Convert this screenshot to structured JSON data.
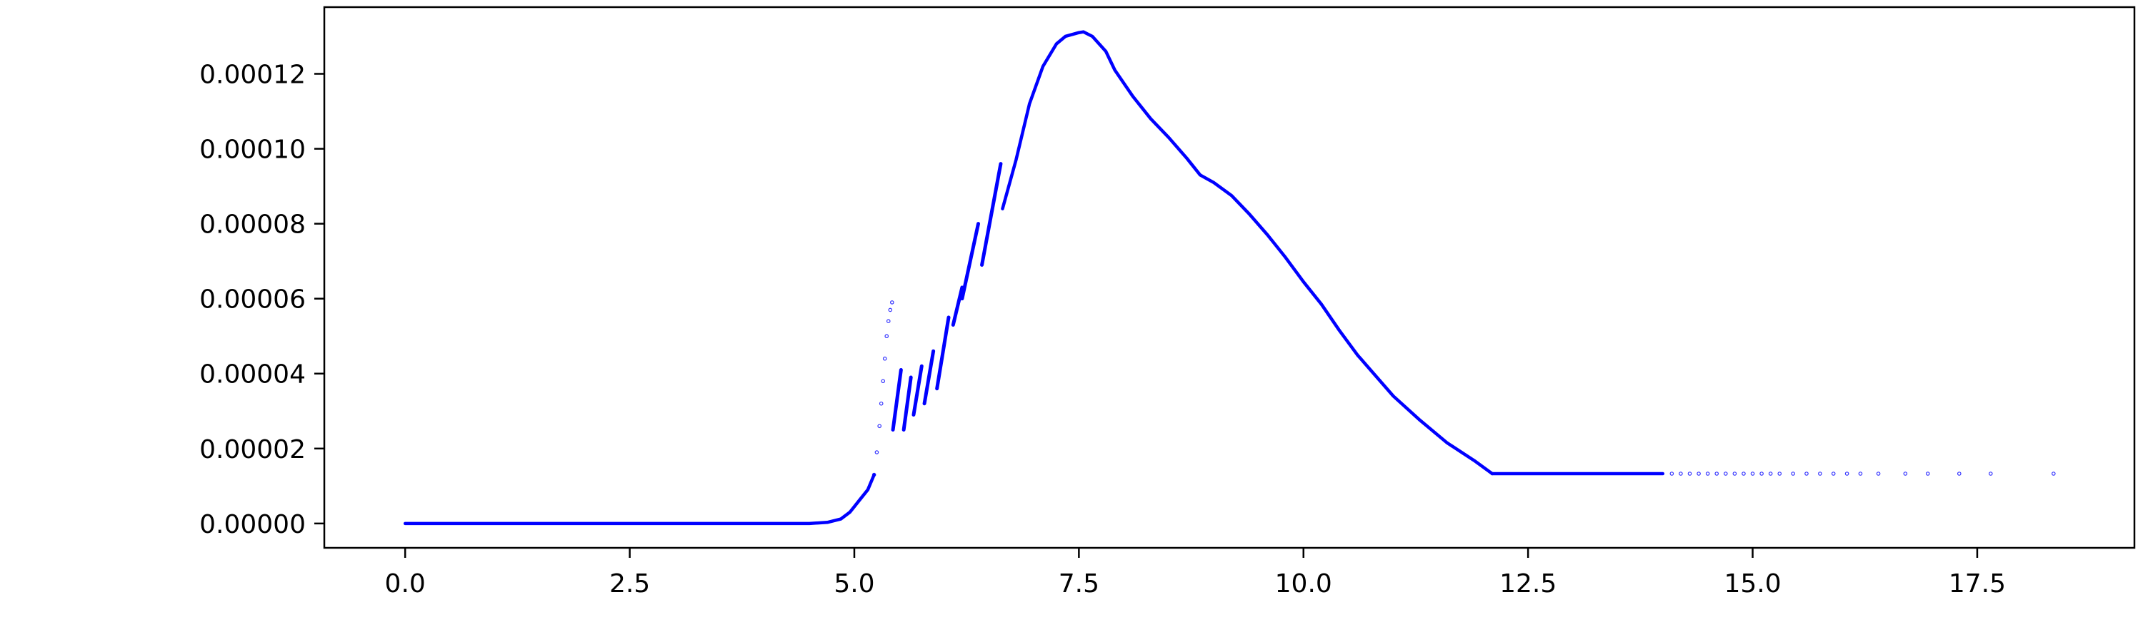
{
  "chart_data": {
    "type": "scatter",
    "title": "",
    "xlabel": "",
    "ylabel": "",
    "xlim": [
      -0.9,
      19.25
    ],
    "ylim": [
      -6.5e-06,
      0.0001378
    ],
    "grid": false,
    "legend": "none",
    "color": "#0000ff",
    "x_ticks": [
      0.0,
      2.5,
      5.0,
      7.5,
      10.0,
      12.5,
      15.0,
      17.5
    ],
    "x_tick_labels": [
      "0.0",
      "2.5",
      "5.0",
      "7.5",
      "10.0",
      "12.5",
      "15.0",
      "17.5"
    ],
    "y_ticks": [
      0.0,
      2e-05,
      4e-05,
      6e-05,
      8e-05,
      0.0001,
      0.00012
    ],
    "y_tick_labels": [
      "0.00000",
      "0.00002",
      "0.00004",
      "0.00006",
      "0.00008",
      "0.00010",
      "0.00012"
    ],
    "series": [
      {
        "style": "dense-curve",
        "x": [
          0.0,
          1.0,
          2.0,
          3.0,
          4.0,
          4.5,
          4.7,
          4.85,
          4.95,
          5.05,
          5.15,
          5.22
        ],
        "y": [
          0.0,
          0.0,
          0.0,
          0.0,
          0.0,
          0.0,
          3e-07,
          1.2e-06,
          3e-06,
          6e-06,
          9e-06,
          1.3e-05
        ]
      },
      {
        "style": "sparse-points",
        "x": [
          5.22,
          5.25,
          5.28,
          5.3,
          5.32,
          5.34,
          5.36,
          5.38,
          5.4,
          5.42
        ],
        "y": [
          1.3e-05,
          1.9e-05,
          2.6e-05,
          3.2e-05,
          3.8e-05,
          4.4e-05,
          5e-05,
          5.4e-05,
          5.7e-05,
          5.9e-05
        ]
      },
      {
        "style": "segment",
        "x": [
          5.43,
          5.52
        ],
        "y": [
          2.5e-05,
          4.1e-05
        ]
      },
      {
        "style": "segment",
        "x": [
          5.55,
          5.63
        ],
        "y": [
          2.5e-05,
          3.9e-05
        ]
      },
      {
        "style": "segment",
        "x": [
          5.66,
          5.75
        ],
        "y": [
          2.9e-05,
          4.2e-05
        ]
      },
      {
        "style": "segment",
        "x": [
          5.78,
          5.88
        ],
        "y": [
          3.2e-05,
          4.6e-05
        ]
      },
      {
        "style": "segment",
        "x": [
          5.92,
          6.05
        ],
        "y": [
          3.6e-05,
          5.5e-05
        ]
      },
      {
        "style": "segment",
        "x": [
          6.1,
          6.2
        ],
        "y": [
          5.3e-05,
          6.3e-05
        ]
      },
      {
        "style": "segment",
        "x": [
          6.2,
          6.38
        ],
        "y": [
          6e-05,
          8e-05
        ]
      },
      {
        "style": "segment",
        "x": [
          6.42,
          6.63
        ],
        "y": [
          6.9e-05,
          9.6e-05
        ]
      },
      {
        "style": "dense-curve",
        "x": [
          6.65,
          6.8,
          6.95,
          7.1,
          7.25,
          7.35,
          7.5,
          7.55,
          7.65,
          7.8,
          7.9,
          8.1,
          8.3,
          8.5,
          8.7,
          8.85,
          9.0,
          9.2,
          9.4,
          9.6,
          9.8,
          10.0,
          10.2,
          10.4,
          10.6,
          10.8,
          11.0,
          11.3,
          11.6,
          11.9,
          12.1
        ],
        "y": [
          8.4e-05,
          9.7e-05,
          0.000112,
          0.000122,
          0.000128,
          0.00013,
          0.000131,
          0.0001312,
          0.00013,
          0.000126,
          0.000121,
          0.000114,
          0.000108,
          0.000103,
          9.75e-05,
          9.3e-05,
          9.1e-05,
          8.75e-05,
          8.25e-05,
          7.7e-05,
          7.1e-05,
          6.45e-05,
          5.85e-05,
          5.15e-05,
          4.5e-05,
          3.95e-05,
          3.4e-05,
          2.75e-05,
          2.15e-05,
          1.68e-05,
          1.33e-05
        ]
      },
      {
        "style": "dense-curve",
        "x": [
          12.1,
          13.0,
          14.0
        ],
        "y": [
          1.33e-05,
          1.33e-05,
          1.33e-05
        ]
      },
      {
        "style": "sparse-points",
        "x": [
          14.1,
          14.2,
          14.3,
          14.4,
          14.5,
          14.6,
          14.7,
          14.8,
          14.9,
          15.0,
          15.1,
          15.2,
          15.3,
          15.45,
          15.6,
          15.75,
          15.9,
          16.05,
          16.2,
          16.4,
          16.7,
          16.95,
          17.3,
          17.65,
          18.35
        ],
        "y": [
          1.33e-05,
          1.33e-05,
          1.33e-05,
          1.33e-05,
          1.33e-05,
          1.33e-05,
          1.33e-05,
          1.33e-05,
          1.33e-05,
          1.33e-05,
          1.33e-05,
          1.33e-05,
          1.33e-05,
          1.33e-05,
          1.33e-05,
          1.33e-05,
          1.33e-05,
          1.33e-05,
          1.33e-05,
          1.33e-05,
          1.33e-05,
          1.33e-05,
          1.33e-05,
          1.33e-05,
          1.33e-05
        ]
      }
    ]
  }
}
